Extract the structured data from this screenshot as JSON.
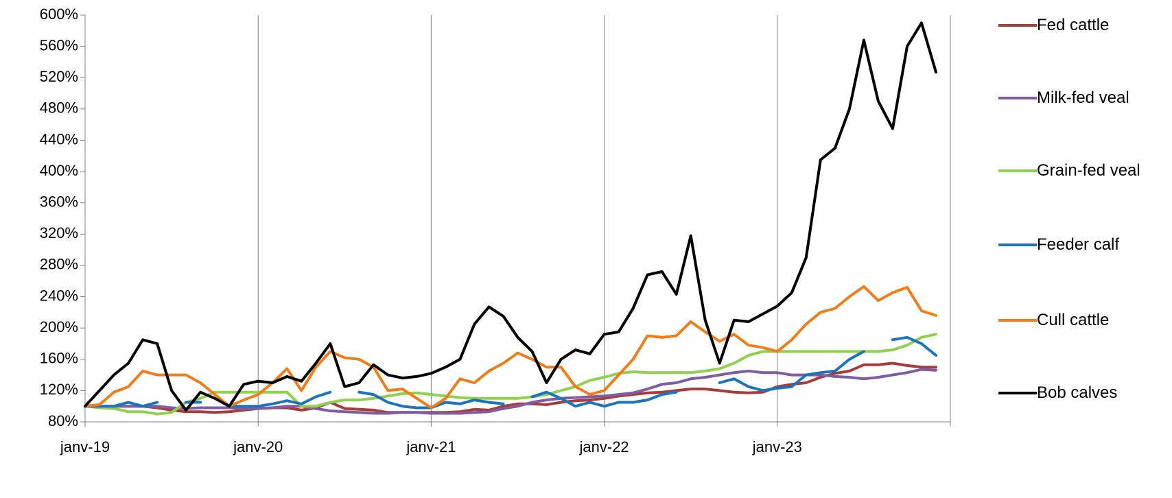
{
  "chart_data": {
    "type": "line",
    "categories": [
      "janv-19",
      null,
      null,
      null,
      null,
      null,
      null,
      null,
      null,
      null,
      null,
      null,
      "janv-20",
      null,
      null,
      null,
      null,
      null,
      null,
      null,
      null,
      null,
      null,
      null,
      "janv-21",
      null,
      null,
      null,
      null,
      null,
      null,
      null,
      null,
      null,
      null,
      null,
      "janv-22",
      null,
      null,
      null,
      null,
      null,
      null,
      null,
      null,
      null,
      null,
      null,
      "janv-23",
      null,
      null,
      null,
      null,
      null,
      null,
      null,
      null,
      null,
      null,
      null
    ],
    "ylim": [
      80,
      600
    ],
    "yticks": [
      {
        "value": 80,
        "label": "80%"
      },
      {
        "value": 120,
        "label": "120%"
      },
      {
        "value": 160,
        "label": "160%"
      },
      {
        "value": 200,
        "label": "200%"
      },
      {
        "value": 240,
        "label": "240%"
      },
      {
        "value": 280,
        "label": "280%"
      },
      {
        "value": 320,
        "label": "320%"
      },
      {
        "value": 360,
        "label": "360%"
      },
      {
        "value": 400,
        "label": "400%"
      },
      {
        "value": 440,
        "label": "440%"
      },
      {
        "value": 480,
        "label": "480%"
      },
      {
        "value": 520,
        "label": "520%"
      },
      {
        "value": 560,
        "label": "560%"
      },
      {
        "value": 600,
        "label": "600%"
      }
    ],
    "grid": "x",
    "legend": "right",
    "series": [
      {
        "name": "Fed cattle",
        "color": "#a83c3a",
        "values": [
          100,
          100,
          100,
          100,
          100,
          98,
          95,
          93,
          93,
          92,
          93,
          95,
          97,
          98,
          98,
          95,
          98,
          105,
          97,
          96,
          95,
          92,
          92,
          92,
          92,
          92,
          93,
          96,
          95,
          100,
          103,
          103,
          102,
          105,
          107,
          108,
          110,
          113,
          115,
          117,
          118,
          120,
          122,
          122,
          120,
          118,
          117,
          118,
          125,
          128,
          130,
          137,
          142,
          145,
          153,
          153,
          155,
          152,
          150,
          150
        ]
      },
      {
        "name": "Milk-fed veal",
        "color": "#7d5ea3",
        "values": [
          100,
          100,
          100,
          100,
          100,
          100,
          98,
          97,
          98,
          98,
          98,
          97,
          97,
          98,
          100,
          100,
          97,
          94,
          93,
          92,
          91,
          91,
          92,
          92,
          91,
          91,
          91,
          92,
          93,
          97,
          100,
          105,
          108,
          110,
          111,
          112,
          113,
          115,
          117,
          122,
          128,
          130,
          135,
          137,
          140,
          143,
          145,
          143,
          143,
          140,
          140,
          140,
          138,
          137,
          135,
          137,
          140,
          143,
          147,
          146
        ]
      },
      {
        "name": "Grain-fed veal",
        "color": "#92d050",
        "values": [
          100,
          98,
          97,
          93,
          93,
          90,
          92,
          105,
          110,
          118,
          118,
          118,
          118,
          118,
          118,
          100,
          100,
          105,
          108,
          108,
          110,
          113,
          116,
          117,
          115,
          113,
          111,
          110,
          110,
          110,
          110,
          112,
          115,
          120,
          125,
          133,
          137,
          142,
          144,
          143,
          143,
          143,
          143,
          145,
          148,
          155,
          165,
          170,
          170,
          170,
          170,
          170,
          170,
          170,
          170,
          170,
          172,
          178,
          188,
          192
        ]
      },
      {
        "name": "Feeder calf",
        "color": "#1a75bc",
        "values": [
          100,
          100,
          100,
          105,
          100,
          105,
          null,
          105,
          105,
          null,
          100,
          100,
          100,
          103,
          107,
          103,
          112,
          118,
          null,
          118,
          115,
          105,
          100,
          98,
          98,
          105,
          103,
          108,
          105,
          103,
          null,
          112,
          118,
          110,
          100,
          105,
          100,
          105,
          105,
          108,
          115,
          118,
          null,
          null,
          130,
          135,
          125,
          120,
          123,
          125,
          140,
          143,
          145,
          160,
          170,
          null,
          185,
          188,
          180,
          165
        ]
      },
      {
        "name": "Cull cattle",
        "color": "#f07d1a",
        "values": [
          100,
          102,
          118,
          125,
          145,
          140,
          140,
          140,
          130,
          115,
          100,
          108,
          115,
          130,
          148,
          120,
          150,
          170,
          162,
          160,
          150,
          120,
          122,
          110,
          98,
          110,
          135,
          130,
          145,
          155,
          168,
          160,
          150,
          150,
          125,
          115,
          120,
          140,
          160,
          190,
          188,
          190,
          208,
          195,
          183,
          192,
          178,
          175,
          170,
          185,
          205,
          220,
          225,
          240,
          253,
          235,
          245,
          252,
          222,
          216
        ]
      },
      {
        "name": "Bob calves",
        "color": "#000000",
        "values": [
          100,
          120,
          140,
          155,
          185,
          180,
          120,
          95,
          118,
          110,
          100,
          128,
          132,
          130,
          138,
          132,
          155,
          180,
          125,
          130,
          153,
          140,
          136,
          138,
          142,
          150,
          160,
          205,
          227,
          215,
          188,
          170,
          130,
          160,
          172,
          167,
          192,
          195,
          225,
          268,
          272,
          243,
          318,
          210,
          155,
          210,
          208,
          218,
          228,
          245,
          290,
          415,
          430,
          480,
          568,
          490,
          455,
          560,
          590,
          527
        ]
      }
    ]
  }
}
